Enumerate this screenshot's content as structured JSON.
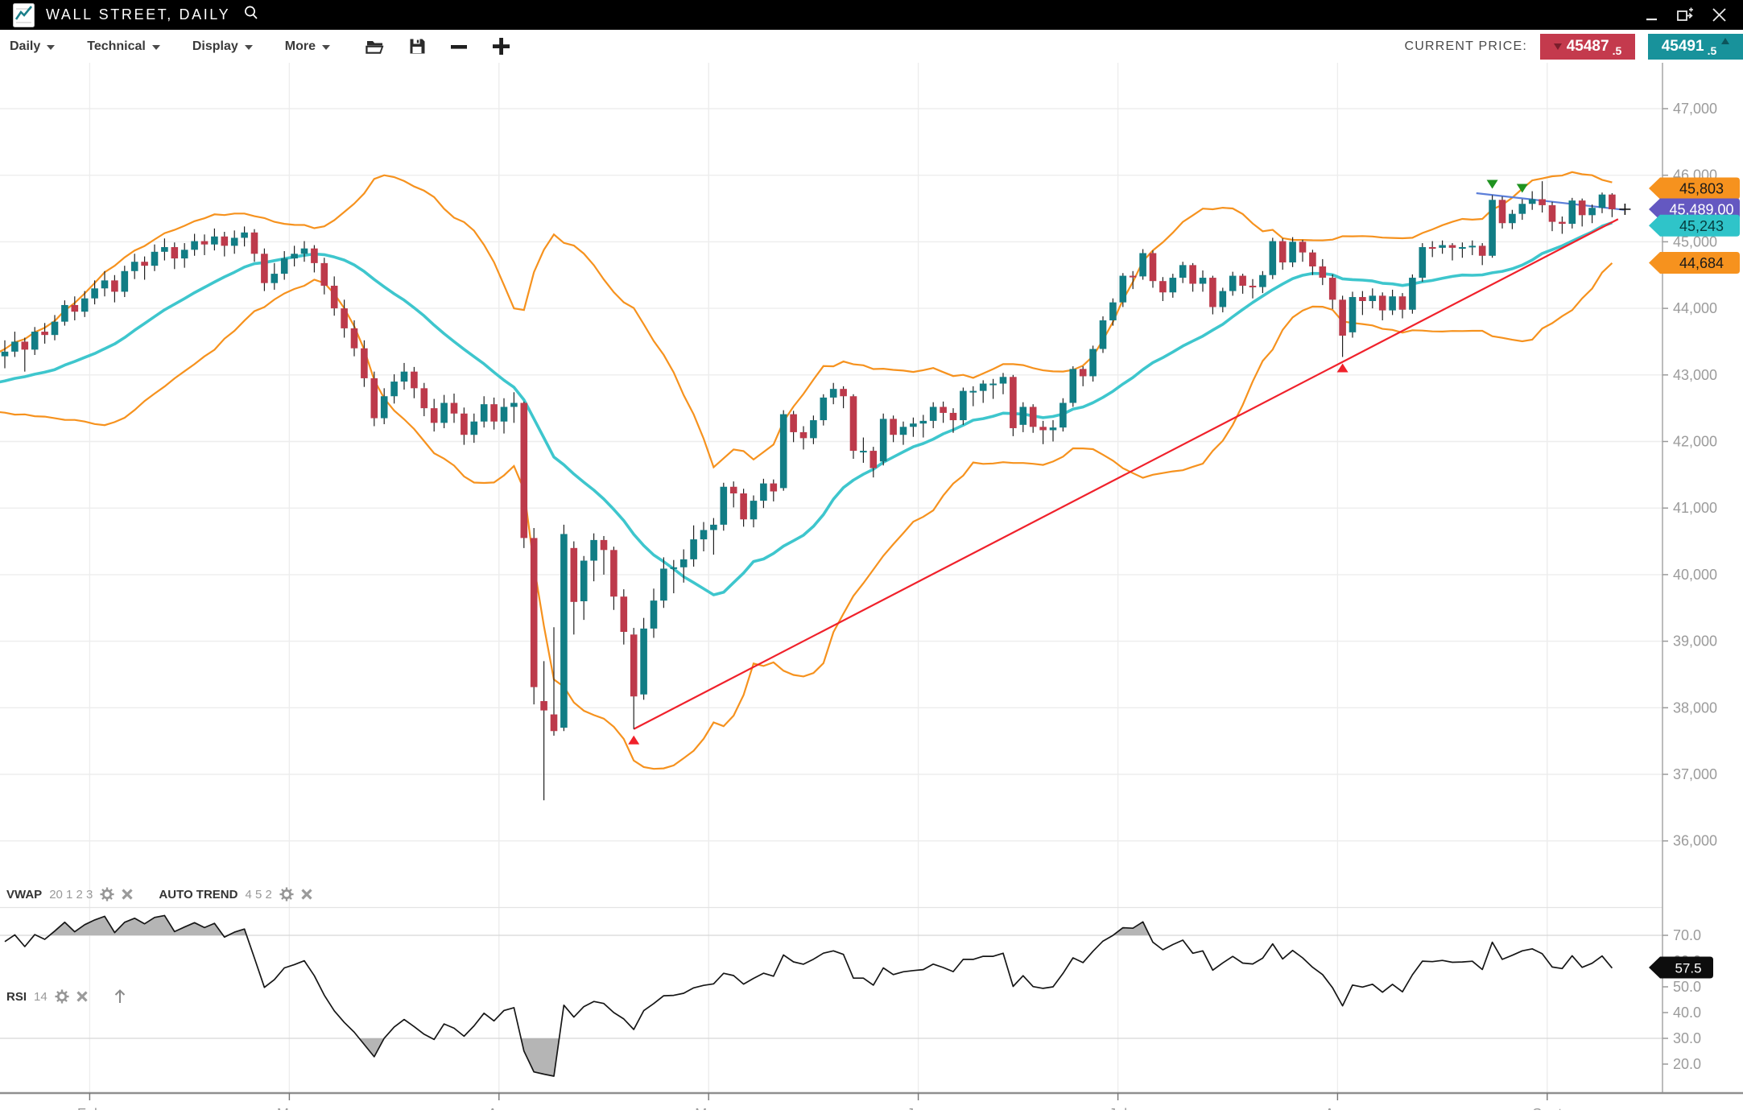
{
  "titlebar": {
    "title": "WALL STREET, DAILY"
  },
  "toolbar": {
    "menus": [
      {
        "label": "Daily"
      },
      {
        "label": "Technical"
      },
      {
        "label": "Display"
      },
      {
        "label": "More"
      }
    ],
    "current_price_label": "CURRENT PRICE:",
    "sell": {
      "main": "45487",
      "frac": ".5"
    },
    "buy": {
      "main": "45491",
      "frac": ".5"
    }
  },
  "indicators": {
    "vwap": {
      "name": "VWAP",
      "params": "20 1 2 3"
    },
    "auto_trend": {
      "name": "AUTO TREND",
      "params": "4 5 2"
    },
    "rsi": {
      "name": "RSI",
      "params": "14"
    }
  },
  "colors": {
    "up": "#117d85",
    "down": "#bd3a4b",
    "wick": "#222222",
    "band": "#f6921e",
    "sma": "#3ec6cd",
    "trend_red": "#f0212b",
    "trend_blue": "#5c7fd9",
    "grid": "#ededed",
    "grid_dark": "#d7d7d7",
    "axis_line": "#ababab",
    "axis_text": "#9b9b9b",
    "rsi_line": "#161616",
    "rsi_fill": "#b5b5b5",
    "tag_orange": "#f6921e",
    "tag_purple": "#6458c1",
    "tag_cyan": "#2fc4c9",
    "tag_black": "#0d0d0d",
    "marker_buy": "#f0212b",
    "marker_sell": "#1f9320"
  },
  "chart_data": {
    "type": "candlestick",
    "symbol": "WALL STREET",
    "timeframe": "DAILY",
    "y_axis": {
      "min": 36000,
      "max": 47000,
      "step": 1000,
      "labels": [
        {
          "v": 47000,
          "t": "47,000"
        },
        {
          "v": 46000,
          "t": "46,000"
        },
        {
          "v": 45000,
          "t": "45,000"
        },
        {
          "v": 44000,
          "t": "44,000"
        },
        {
          "v": 43000,
          "t": "43,000"
        },
        {
          "v": 42000,
          "t": "42,000"
        },
        {
          "v": 41000,
          "t": "41,000"
        },
        {
          "v": 40000,
          "t": "40,000"
        },
        {
          "v": 39000,
          "t": "39,000"
        },
        {
          "v": 38000,
          "t": "38,000"
        },
        {
          "v": 37000,
          "t": "37,000"
        },
        {
          "v": 36000,
          "t": "36,000"
        }
      ]
    },
    "months": [
      {
        "label": "Feb",
        "i": 8.5
      },
      {
        "label": "Mar",
        "i": 28.5
      },
      {
        "label": "Apr",
        "i": 49.5
      },
      {
        "label": "May",
        "i": 70.5
      },
      {
        "label": "Jun",
        "i": 91.5
      },
      {
        "label": "Jul",
        "i": 111.5
      },
      {
        "label": "Aug",
        "i": 133.5
      },
      {
        "label": "Sept",
        "i": 154.5
      }
    ],
    "pre_closes": [
      42700,
      42840,
      42960,
      43100,
      42980,
      42820,
      42650,
      42500,
      42610,
      42760,
      42900,
      43050,
      43180,
      43260
    ],
    "candles": [
      [
        43280,
        43520,
        43100,
        43350
      ],
      [
        43350,
        43650,
        43270,
        43500
      ],
      [
        43500,
        43560,
        43050,
        43380
      ],
      [
        43380,
        43720,
        43300,
        43650
      ],
      [
        43650,
        43780,
        43470,
        43600
      ],
      [
        43600,
        43900,
        43520,
        43800
      ],
      [
        43800,
        44120,
        43740,
        44050
      ],
      [
        44050,
        44180,
        43820,
        43950
      ],
      [
        43950,
        44260,
        43870,
        44150
      ],
      [
        44150,
        44420,
        44060,
        44300
      ],
      [
        44300,
        44560,
        44180,
        44420
      ],
      [
        44420,
        44500,
        44090,
        44250
      ],
      [
        44250,
        44640,
        44170,
        44560
      ],
      [
        44560,
        44820,
        44440,
        44700
      ],
      [
        44700,
        44780,
        44430,
        44640
      ],
      [
        44640,
        44960,
        44560,
        44850
      ],
      [
        44850,
        45050,
        44720,
        44920
      ],
      [
        44920,
        44990,
        44590,
        44750
      ],
      [
        44750,
        44980,
        44610,
        44880
      ],
      [
        44880,
        45120,
        44790,
        45010
      ],
      [
        45010,
        45110,
        44800,
        44960
      ],
      [
        44960,
        45200,
        44870,
        45080
      ],
      [
        45080,
        45150,
        44780,
        44940
      ],
      [
        44940,
        45170,
        44820,
        45060
      ],
      [
        45060,
        45230,
        44930,
        45140
      ],
      [
        45140,
        45190,
        44700,
        44820
      ],
      [
        44820,
        44900,
        44260,
        44380
      ],
      [
        44380,
        44680,
        44280,
        44520
      ],
      [
        44520,
        44860,
        44430,
        44750
      ],
      [
        44750,
        44940,
        44630,
        44820
      ],
      [
        44820,
        45010,
        44700,
        44900
      ],
      [
        44900,
        44950,
        44540,
        44680
      ],
      [
        44680,
        44760,
        44210,
        44340
      ],
      [
        44340,
        44480,
        43890,
        44000
      ],
      [
        44000,
        44130,
        43560,
        43700
      ],
      [
        43700,
        43820,
        43280,
        43400
      ],
      [
        43400,
        43520,
        42820,
        42950
      ],
      [
        42950,
        43050,
        42230,
        42350
      ],
      [
        42350,
        42800,
        42260,
        42680
      ],
      [
        42680,
        43010,
        42570,
        42900
      ],
      [
        42900,
        43180,
        42780,
        43050
      ],
      [
        43050,
        43120,
        42650,
        42800
      ],
      [
        42800,
        42880,
        42380,
        42500
      ],
      [
        42500,
        42640,
        42150,
        42280
      ],
      [
        42280,
        42700,
        42200,
        42580
      ],
      [
        42580,
        42720,
        42280,
        42420
      ],
      [
        42420,
        42510,
        41950,
        42100
      ],
      [
        42100,
        42420,
        41980,
        42300
      ],
      [
        42300,
        42680,
        42210,
        42560
      ],
      [
        42560,
        42660,
        42180,
        42300
      ],
      [
        42300,
        42650,
        42120,
        42520
      ],
      [
        42520,
        42740,
        42280,
        42580
      ],
      [
        42580,
        42600,
        40400,
        40550
      ],
      [
        40550,
        40700,
        38050,
        38310
      ],
      [
        38100,
        38700,
        36610,
        37960
      ],
      [
        37900,
        39210,
        37580,
        37650
      ],
      [
        37700,
        40750,
        37650,
        40610
      ],
      [
        40400,
        40500,
        39100,
        39590
      ],
      [
        39600,
        40280,
        39320,
        40210
      ],
      [
        40210,
        40620,
        39900,
        40520
      ],
      [
        40520,
        40580,
        40000,
        40370
      ],
      [
        40370,
        40420,
        39470,
        39670
      ],
      [
        39670,
        39780,
        38950,
        39140
      ],
      [
        39100,
        39200,
        37680,
        38170
      ],
      [
        38200,
        39350,
        38120,
        39190
      ],
      [
        39190,
        39790,
        39050,
        39610
      ],
      [
        39610,
        40260,
        39500,
        40090
      ],
      [
        40090,
        40220,
        39720,
        40110
      ],
      [
        40110,
        40380,
        39880,
        40230
      ],
      [
        40230,
        40740,
        40120,
        40530
      ],
      [
        40530,
        40790,
        40350,
        40670
      ],
      [
        40670,
        40850,
        40300,
        40750
      ],
      [
        40750,
        41380,
        40660,
        41320
      ],
      [
        41320,
        41400,
        41010,
        41220
      ],
      [
        41220,
        41290,
        40720,
        40830
      ],
      [
        40830,
        41190,
        40710,
        41110
      ],
      [
        41110,
        41440,
        41000,
        41370
      ],
      [
        41370,
        41430,
        41100,
        41250
      ],
      [
        41300,
        42470,
        41260,
        42410
      ],
      [
        42410,
        42460,
        41990,
        42140
      ],
      [
        42140,
        42230,
        41880,
        42050
      ],
      [
        42050,
        42390,
        41960,
        42320
      ],
      [
        42320,
        42710,
        42240,
        42660
      ],
      [
        42660,
        42880,
        42560,
        42790
      ],
      [
        42790,
        42830,
        42500,
        42680
      ],
      [
        42680,
        42710,
        41740,
        41860
      ],
      [
        41860,
        42060,
        41680,
        41860
      ],
      [
        41860,
        41920,
        41460,
        41600
      ],
      [
        41700,
        42420,
        41640,
        42340
      ],
      [
        42340,
        42390,
        41990,
        42100
      ],
      [
        42100,
        42300,
        41950,
        42220
      ],
      [
        42220,
        42360,
        42070,
        42270
      ],
      [
        42270,
        42400,
        42060,
        42310
      ],
      [
        42310,
        42590,
        42200,
        42520
      ],
      [
        42520,
        42600,
        42280,
        42430
      ],
      [
        42430,
        42500,
        42130,
        42320
      ],
      [
        42320,
        42810,
        42250,
        42760
      ],
      [
        42760,
        42830,
        42530,
        42760
      ],
      [
        42760,
        42920,
        42580,
        42870
      ],
      [
        42870,
        42940,
        42640,
        42870
      ],
      [
        42870,
        43030,
        42710,
        42970
      ],
      [
        42970,
        43000,
        42080,
        42200
      ],
      [
        42250,
        42590,
        42140,
        42520
      ],
      [
        42520,
        42560,
        42130,
        42220
      ],
      [
        42220,
        42310,
        41960,
        42170
      ],
      [
        42170,
        42320,
        42000,
        42210
      ],
      [
        42210,
        42650,
        42150,
        42580
      ],
      [
        42580,
        43130,
        42520,
        43090
      ],
      [
        43090,
        43130,
        42830,
        42980
      ],
      [
        42980,
        43440,
        42900,
        43390
      ],
      [
        43390,
        43880,
        43330,
        43820
      ],
      [
        43820,
        44150,
        43740,
        44090
      ],
      [
        44090,
        44530,
        44020,
        44490
      ],
      [
        44490,
        44560,
        44290,
        44480
      ],
      [
        44480,
        44890,
        44430,
        44830
      ],
      [
        44830,
        44870,
        44310,
        44410
      ],
      [
        44410,
        44470,
        44110,
        44240
      ],
      [
        44240,
        44520,
        44160,
        44460
      ],
      [
        44460,
        44700,
        44380,
        44650
      ],
      [
        44650,
        44680,
        44250,
        44370
      ],
      [
        44370,
        44570,
        44250,
        44460
      ],
      [
        44460,
        44490,
        43910,
        44020
      ],
      [
        44020,
        44310,
        43940,
        44260
      ],
      [
        44260,
        44550,
        44190,
        44490
      ],
      [
        44490,
        44520,
        44220,
        44340
      ],
      [
        44340,
        44440,
        44150,
        44320
      ],
      [
        44320,
        44560,
        44230,
        44500
      ],
      [
        44500,
        45060,
        44440,
        45010
      ],
      [
        45010,
        45050,
        44580,
        44690
      ],
      [
        44690,
        45070,
        44620,
        45000
      ],
      [
        45000,
        45030,
        44700,
        44840
      ],
      [
        44840,
        44880,
        44500,
        44630
      ],
      [
        44630,
        44740,
        44350,
        44460
      ],
      [
        44460,
        44510,
        43990,
        44130
      ],
      [
        44130,
        44190,
        43270,
        43590
      ],
      [
        43640,
        44250,
        43560,
        44170
      ],
      [
        44170,
        44260,
        43900,
        44110
      ],
      [
        44110,
        44300,
        44000,
        44190
      ],
      [
        44190,
        44240,
        43820,
        43970
      ],
      [
        43970,
        44280,
        43900,
        44180
      ],
      [
        44180,
        44230,
        43850,
        43980
      ],
      [
        43980,
        44510,
        43920,
        44460
      ],
      [
        44460,
        44980,
        44400,
        44920
      ],
      [
        44920,
        45010,
        44770,
        44910
      ],
      [
        44910,
        45020,
        44820,
        44950
      ],
      [
        44950,
        44980,
        44720,
        44910
      ],
      [
        44910,
        44990,
        44760,
        44920
      ],
      [
        44920,
        45020,
        44800,
        44940
      ],
      [
        44940,
        44980,
        44650,
        44790
      ],
      [
        44790,
        45700,
        44760,
        45630
      ],
      [
        45630,
        45680,
        45200,
        45280
      ],
      [
        45280,
        45480,
        45190,
        45420
      ],
      [
        45420,
        45640,
        45330,
        45570
      ],
      [
        45570,
        45760,
        45480,
        45640
      ],
      [
        45640,
        45910,
        45440,
        45550
      ],
      [
        45550,
        45600,
        45160,
        45300
      ],
      [
        45300,
        45380,
        45120,
        45270
      ],
      [
        45270,
        45660,
        45200,
        45620
      ],
      [
        45620,
        45650,
        45230,
        45400
      ],
      [
        45400,
        45560,
        45280,
        45510
      ],
      [
        45510,
        45740,
        45430,
        45710
      ],
      [
        45710,
        45730,
        45370,
        45489
      ]
    ],
    "overlays": {
      "bollinger": {
        "period": 20,
        "mult": 2
      },
      "sma": {
        "period": 20
      },
      "trendlines": [
        {
          "kind": "support",
          "i1": 63,
          "p1": 37680,
          "i2": 161.6,
          "p2": 45340,
          "color_key": "trend_red"
        },
        {
          "kind": "resistance",
          "i1": 147.4,
          "p1": 45730,
          "i2": 162.2,
          "p2": 45480,
          "color_key": "trend_blue"
        }
      ],
      "markers": {
        "buy": [
          {
            "i": 63,
            "low": 37680
          },
          {
            "i": 134,
            "low": 43270
          }
        ],
        "sell": [
          {
            "i": 149,
            "high": 45700
          },
          {
            "i": 152,
            "high": 45640
          }
        ]
      },
      "last_price_cross": {
        "i": 161,
        "price": 45489
      }
    },
    "price_tags": [
      {
        "label": "45,803",
        "price": 45803,
        "bg": "tag_orange",
        "fg": "#1a1a1a"
      },
      {
        "label": "45,489.00",
        "price": 45489,
        "bg": "tag_purple",
        "fg": "#ffffff"
      },
      {
        "label": "45,243",
        "price": 45243,
        "bg": "tag_cyan",
        "fg": "#063c3e"
      },
      {
        "label": "44,684",
        "price": 44684,
        "bg": "tag_orange",
        "fg": "#1a1a1a"
      }
    ],
    "rsi_panel": {
      "period": 14,
      "overbought": 70,
      "oversold": 30,
      "labels": [
        {
          "v": 70,
          "t": "70.0"
        },
        {
          "v": 60,
          "t": "60.0"
        },
        {
          "v": 50,
          "t": "50.0"
        },
        {
          "v": 40,
          "t": "40.0"
        },
        {
          "v": 30,
          "t": "30.0"
        },
        {
          "v": 20,
          "t": "20.0"
        }
      ],
      "value_tag": {
        "label": "57.5",
        "value": 57.5
      }
    }
  }
}
